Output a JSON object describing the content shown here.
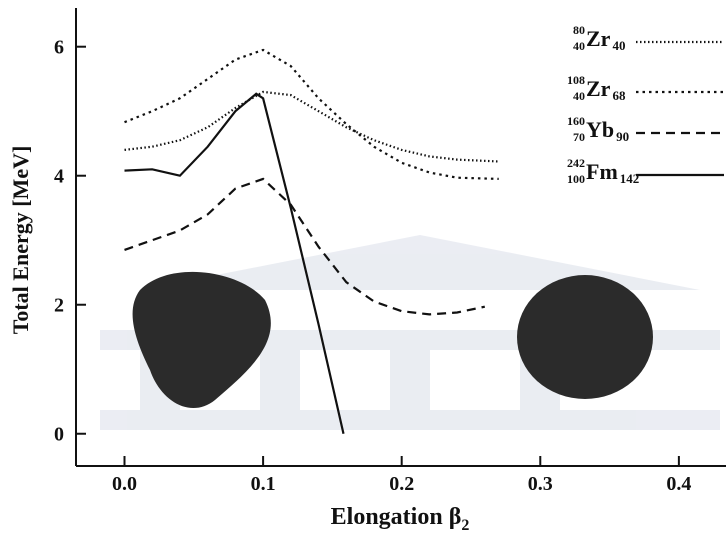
{
  "chart_data": {
    "type": "line",
    "y_label": "Total Energy [MeV]",
    "x_label": "Elongation β",
    "x_label_subscript": "2",
    "xlim": [
      -0.035,
      0.434
    ],
    "ylim": [
      -0.5,
      6.6
    ],
    "xticks": [
      {
        "value": 0,
        "label": "0.0"
      },
      0.1,
      0.2,
      0.3,
      0.4
    ],
    "yticks": [
      0,
      2,
      4,
      6
    ],
    "legend": "top-right",
    "series": [
      {
        "name": "Zr",
        "mass_number": "80",
        "atomic_number": "40",
        "neutron_number": "40",
        "color": "#111111",
        "style": "dotted",
        "x": [
          0,
          0.02,
          0.04,
          0.06,
          0.08,
          0.1,
          0.12,
          0.14,
          0.16,
          0.18,
          0.2,
          0.22,
          0.24,
          0.27
        ],
        "values": [
          4.4,
          4.45,
          4.55,
          4.75,
          5.05,
          5.3,
          5.25,
          5.0,
          4.75,
          4.55,
          4.4,
          4.3,
          4.25,
          4.22
        ]
      },
      {
        "name": "Zr",
        "mass_number": "108",
        "atomic_number": "40",
        "neutron_number": "68",
        "color": "#111111",
        "style": "dotted-coarse",
        "x": [
          0,
          0.02,
          0.04,
          0.06,
          0.08,
          0.1,
          0.12,
          0.14,
          0.16,
          0.18,
          0.2,
          0.22,
          0.24,
          0.27
        ],
        "values": [
          4.83,
          5.0,
          5.2,
          5.5,
          5.8,
          5.95,
          5.7,
          5.2,
          4.8,
          4.45,
          4.2,
          4.05,
          3.97,
          3.95
        ]
      },
      {
        "name": "Yb",
        "mass_number": "160",
        "atomic_number": "70",
        "neutron_number": "90",
        "color": "#111111",
        "style": "dashed",
        "x": [
          0,
          0.02,
          0.04,
          0.06,
          0.08,
          0.1,
          0.12,
          0.14,
          0.16,
          0.18,
          0.2,
          0.22,
          0.24,
          0.26
        ],
        "values": [
          2.85,
          3.0,
          3.15,
          3.4,
          3.8,
          3.95,
          3.55,
          2.9,
          2.35,
          2.05,
          1.9,
          1.85,
          1.88,
          1.97
        ]
      },
      {
        "name": "Fm",
        "mass_number": "242",
        "atomic_number": "100",
        "neutron_number": "142",
        "color": "#111111",
        "style": "solid",
        "x": [
          0,
          0.02,
          0.04,
          0.06,
          0.08,
          0.095,
          0.1,
          0.12,
          0.14,
          0.158
        ],
        "values": [
          4.08,
          4.1,
          4.0,
          4.45,
          5.0,
          5.27,
          5.2,
          3.5,
          1.7,
          0
        ]
      }
    ]
  }
}
